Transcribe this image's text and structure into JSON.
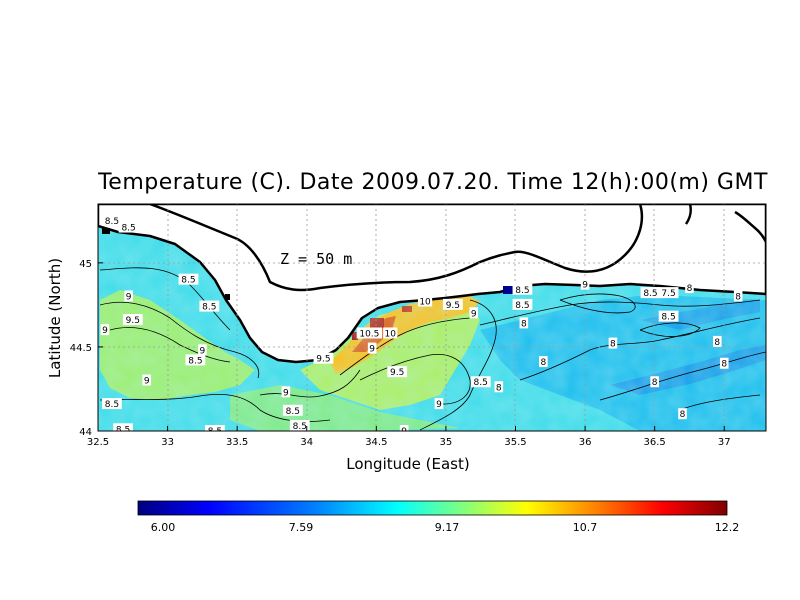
{
  "title": "Temperature (C). Date 2009.07.20. Time 12(h):00(m) GMT",
  "depth_label": "Z  =  50  m",
  "colors": {
    "land": "#ffffff",
    "coast": "#000000",
    "grid": "#9a9a9a"
  },
  "chart_data": {
    "type": "heatmap",
    "xlabel": "Longitude (East)",
    "ylabel": "Latitude (North)",
    "xlim": [
      32.5,
      37.3
    ],
    "ylim": [
      44.0,
      45.35
    ],
    "x_ticks": [
      "32.5",
      "33",
      "33.5",
      "34",
      "34.5",
      "35",
      "35.5",
      "36",
      "36.5",
      "37"
    ],
    "y_ticks": [
      "44",
      "44.5",
      "45"
    ],
    "colorbar": {
      "min": 6.0,
      "max": 12.2,
      "tick_labels": [
        "6.00",
        "7.59",
        "9.17",
        "10.7",
        "12.2"
      ],
      "palette": [
        "#00007f",
        "#0000ff",
        "#007fff",
        "#00ffff",
        "#7fff7f",
        "#ffff00",
        "#ff7f00",
        "#ff0000",
        "#7f0000"
      ]
    },
    "contour_labels": [
      {
        "text": "8.5",
        "lon": 32.6,
        "lat": 45.25
      },
      {
        "text": "8.5",
        "lon": 32.72,
        "lat": 45.21
      },
      {
        "text": "9",
        "lon": 32.72,
        "lat": 44.8
      },
      {
        "text": "8.5",
        "lon": 33.15,
        "lat": 44.9
      },
      {
        "text": "8.5",
        "lon": 33.3,
        "lat": 44.74
      },
      {
        "text": "9.5",
        "lon": 32.75,
        "lat": 44.66
      },
      {
        "text": "9",
        "lon": 32.55,
        "lat": 44.6
      },
      {
        "text": "9",
        "lon": 33.25,
        "lat": 44.48
      },
      {
        "text": "8.5",
        "lon": 33.2,
        "lat": 44.42
      },
      {
        "text": "9",
        "lon": 32.85,
        "lat": 44.3
      },
      {
        "text": "8.5",
        "lon": 32.6,
        "lat": 44.16
      },
      {
        "text": "8.5",
        "lon": 32.68,
        "lat": 44.01
      },
      {
        "text": "8.5",
        "lon": 33.34,
        "lat": 44.0
      },
      {
        "text": "9",
        "lon": 33.85,
        "lat": 44.23
      },
      {
        "text": "8.5",
        "lon": 33.9,
        "lat": 44.12
      },
      {
        "text": "8.5",
        "lon": 33.95,
        "lat": 44.03
      },
      {
        "text": "9.5",
        "lon": 34.12,
        "lat": 44.43
      },
      {
        "text": "10.5",
        "lon": 34.45,
        "lat": 44.58
      },
      {
        "text": "10",
        "lon": 34.6,
        "lat": 44.58
      },
      {
        "text": "9",
        "lon": 34.47,
        "lat": 44.49
      },
      {
        "text": "10",
        "lon": 34.85,
        "lat": 44.77
      },
      {
        "text": "9.5",
        "lon": 35.05,
        "lat": 44.75
      },
      {
        "text": "9.5",
        "lon": 34.65,
        "lat": 44.35
      },
      {
        "text": "9",
        "lon": 34.95,
        "lat": 44.16
      },
      {
        "text": "9",
        "lon": 34.7,
        "lat": 44.0
      },
      {
        "text": "9",
        "lon": 35.2,
        "lat": 44.7
      },
      {
        "text": "8.5",
        "lon": 35.55,
        "lat": 44.84
      },
      {
        "text": "8.5",
        "lon": 35.55,
        "lat": 44.75
      },
      {
        "text": "8",
        "lon": 35.56,
        "lat": 44.64
      },
      {
        "text": "8.5",
        "lon": 35.25,
        "lat": 44.29
      },
      {
        "text": "8",
        "lon": 35.38,
        "lat": 44.26
      },
      {
        "text": "8",
        "lon": 35.7,
        "lat": 44.41
      },
      {
        "text": "9",
        "lon": 36.0,
        "lat": 44.87
      },
      {
        "text": "8.5",
        "lon": 36.47,
        "lat": 44.82
      },
      {
        "text": "7.5",
        "lon": 36.6,
        "lat": 44.82
      },
      {
        "text": "8",
        "lon": 36.75,
        "lat": 44.85
      },
      {
        "text": "8.5",
        "lon": 36.6,
        "lat": 44.68
      },
      {
        "text": "8",
        "lon": 36.2,
        "lat": 44.52
      },
      {
        "text": "8",
        "lon": 36.95,
        "lat": 44.53
      },
      {
        "text": "8",
        "lon": 37.1,
        "lat": 44.8
      },
      {
        "text": "8",
        "lon": 37.0,
        "lat": 44.4
      },
      {
        "text": "8",
        "lon": 36.5,
        "lat": 44.29
      },
      {
        "text": "8",
        "lon": 36.7,
        "lat": 44.1
      }
    ]
  },
  "colorbar_labels": {
    "l0": "6.00",
    "l1": "7.59",
    "l2": "9.17",
    "l3": "10.7",
    "l4": "12.2"
  }
}
